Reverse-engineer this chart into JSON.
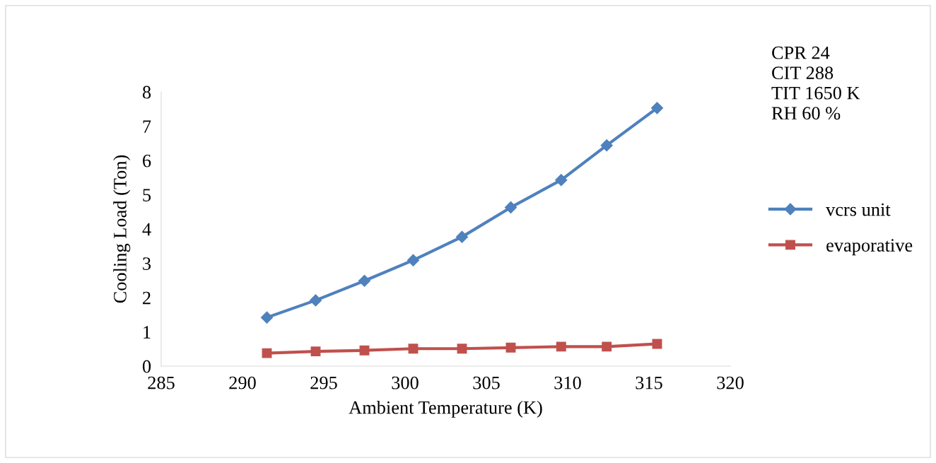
{
  "chart_data": {
    "type": "line",
    "xlabel": "Ambient Temperature (K)",
    "ylabel": "Cooling Load (Ton)",
    "x": [
      291.5,
      294.5,
      297.5,
      300.5,
      303.5,
      306.5,
      309.6,
      312.4,
      315.5
    ],
    "series": [
      {
        "name": "vcrs unit",
        "color": "#4f81bd",
        "marker": "diamond",
        "values": [
          1.42,
          1.92,
          2.49,
          3.09,
          3.77,
          4.63,
          5.43,
          6.44,
          7.53
        ]
      },
      {
        "name": "evaporative",
        "color": "#c0504d",
        "marker": "square",
        "values": [
          0.38,
          0.43,
          0.46,
          0.51,
          0.51,
          0.54,
          0.57,
          0.57,
          0.65
        ]
      }
    ],
    "xlim": [
      285,
      320
    ],
    "xticks": [
      285,
      290,
      295,
      300,
      305,
      310,
      315,
      320
    ],
    "ylim": [
      0,
      8
    ],
    "yticks": [
      0,
      1,
      2,
      3,
      4,
      5,
      6,
      7,
      8
    ],
    "grid": false,
    "legend": "right",
    "line_style": "solid",
    "annotations": [
      "CPR 24",
      "CIT 288",
      "TIT 1650 K",
      "RH 60 %"
    ]
  }
}
